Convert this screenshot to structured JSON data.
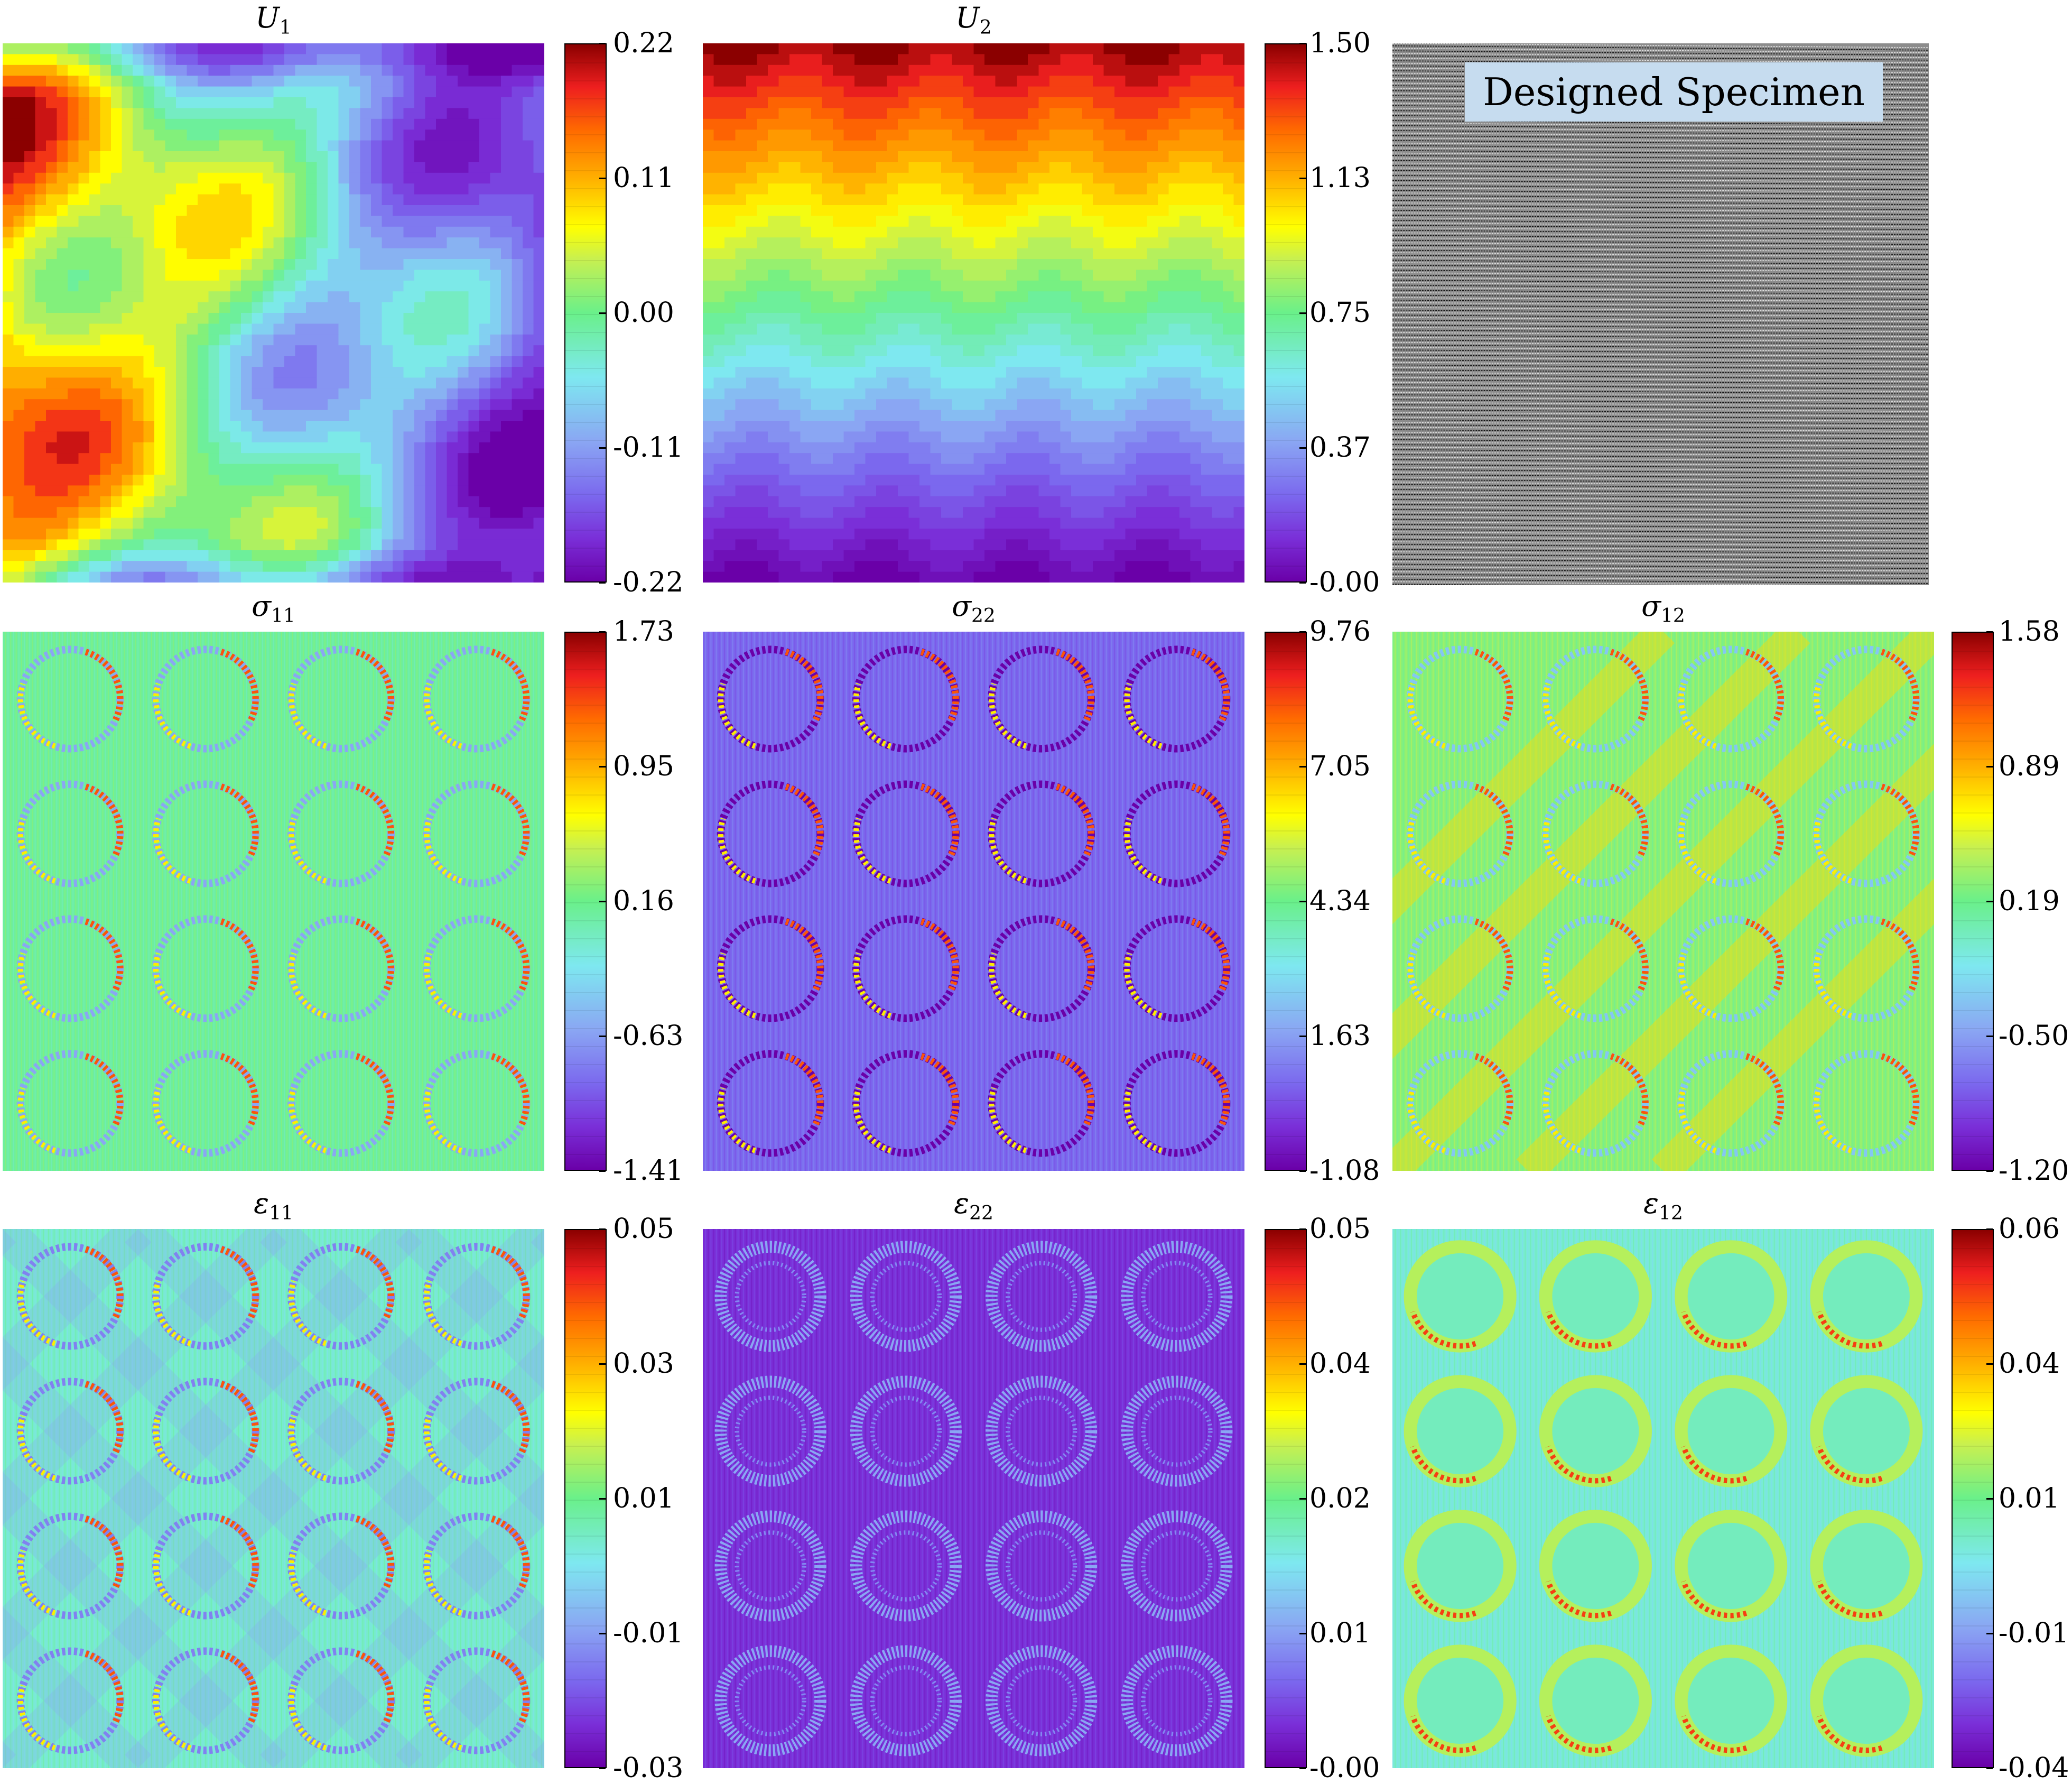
{
  "panels": [
    {
      "id": "U1",
      "title": "U",
      "sub": "1",
      "ticks": [
        "0.22",
        "0.11",
        "0.00",
        "-0.11",
        "-0.22"
      ],
      "kind": "disp-x"
    },
    {
      "id": "U2",
      "title": "U",
      "sub": "2",
      "ticks": [
        "1.50",
        "1.13",
        "0.75",
        "0.37",
        "-0.00"
      ],
      "kind": "disp-y"
    },
    {
      "id": "specimen",
      "title": "",
      "sub": "",
      "ticks": [],
      "kind": "specimen"
    },
    {
      "id": "s11",
      "title": "σ",
      "sub": "11",
      "ticks": [
        "1.73",
        "0.95",
        "0.16",
        "-0.63",
        "-1.41"
      ],
      "kind": "stress11"
    },
    {
      "id": "s22",
      "title": "σ",
      "sub": "22",
      "ticks": [
        "9.76",
        "7.05",
        "4.34",
        "1.63",
        "-1.08"
      ],
      "kind": "stress22"
    },
    {
      "id": "s12",
      "title": "σ",
      "sub": "12",
      "ticks": [
        "1.58",
        "0.89",
        "0.19",
        "-0.50",
        "-1.20"
      ],
      "kind": "stress12"
    },
    {
      "id": "e11",
      "title": "ε",
      "sub": "11",
      "ticks": [
        "0.05",
        "0.03",
        "0.01",
        "-0.01",
        "-0.03"
      ],
      "kind": "strain11"
    },
    {
      "id": "e22",
      "title": "ε",
      "sub": "22",
      "ticks": [
        "0.05",
        "0.04",
        "0.02",
        "0.01",
        "-0.00"
      ],
      "kind": "strain22"
    },
    {
      "id": "e12",
      "title": "ε",
      "sub": "12",
      "ticks": [
        "0.06",
        "0.04",
        "0.01",
        "-0.01",
        "-0.04"
      ],
      "kind": "strain12"
    }
  ],
  "specimen_label": "Designed Specimen",
  "chart_data": {
    "type": "heatmap",
    "colormap": "jet-like (purple → blue → cyan → green → yellow → orange → red → dark red)",
    "fields": [
      {
        "name": "U1",
        "colorbar": [
          -0.22,
          0.22
        ],
        "ticks": [
          0.22,
          0.11,
          0.0,
          -0.11,
          -0.22
        ]
      },
      {
        "name": "U2",
        "colorbar": [
          -0.0,
          1.5
        ],
        "ticks": [
          1.5,
          1.13,
          0.75,
          0.37,
          -0.0
        ]
      },
      {
        "name": "σ11",
        "colorbar": [
          -1.41,
          1.73
        ],
        "ticks": [
          1.73,
          0.95,
          0.16,
          -0.63,
          -1.41
        ]
      },
      {
        "name": "σ22",
        "colorbar": [
          -1.08,
          9.76
        ],
        "ticks": [
          9.76,
          7.05,
          4.34,
          1.63,
          -1.08
        ]
      },
      {
        "name": "σ12",
        "colorbar": [
          -1.2,
          1.58
        ],
        "ticks": [
          1.58,
          0.89,
          0.19,
          -0.5,
          -1.2
        ]
      },
      {
        "name": "ε11",
        "colorbar": [
          -0.03,
          0.05
        ],
        "ticks": [
          0.05,
          0.03,
          0.01,
          -0.01,
          -0.03
        ]
      },
      {
        "name": "ε22",
        "colorbar": [
          -0.0,
          0.05
        ],
        "ticks": [
          0.05,
          0.04,
          0.02,
          0.01,
          -0.0
        ]
      },
      {
        "name": "ε12",
        "colorbar": [
          -0.04,
          0.06
        ],
        "ticks": [
          0.06,
          0.04,
          0.01,
          -0.01,
          -0.04
        ]
      }
    ],
    "specimen_pattern": "4x4 lattice of circular inclusions"
  }
}
